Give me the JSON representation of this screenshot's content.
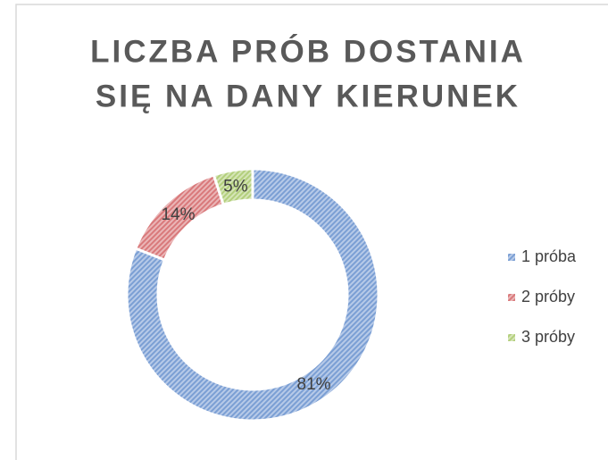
{
  "chart_data": {
    "type": "donut",
    "title": [
      "LICZBA PRÓB DOSTANIA",
      "SIĘ NA DANY KIERUNEK"
    ],
    "series": [
      {
        "name": "1 próba",
        "color": "#7b9fd4"
      },
      {
        "name": "2 próby",
        "color": "#d9797b"
      },
      {
        "name": "3 próby",
        "color": "#b3cf7c"
      }
    ],
    "values": [
      81,
      14,
      5
    ],
    "value_labels": [
      "81%",
      "14%",
      "5%"
    ],
    "legend": "right"
  }
}
